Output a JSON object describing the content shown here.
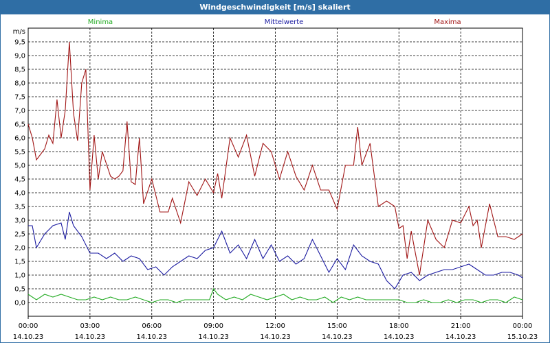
{
  "window": {
    "title": "Windgeschwindigkeit [m/s] skaliert"
  },
  "chart_data": {
    "type": "line",
    "title": "Windgeschwindigkeit [m/s] skaliert",
    "ylabel": "m/s",
    "ylim": [
      -0.5,
      10
    ],
    "xlim": [
      0,
      24
    ],
    "grid": true,
    "legend_position": "top",
    "y_ticks": [
      "0,0",
      "0,5",
      "1,0",
      "1,5",
      "2,0",
      "2,5",
      "3,0",
      "3,5",
      "4,0",
      "4,5",
      "5,0",
      "5,5",
      "6,0",
      "6,5",
      "7,0",
      "7,5",
      "8,0",
      "8,5",
      "9,0",
      "9,5"
    ],
    "x_ticks": [
      {
        "time": "00:00",
        "date": "14.10.23"
      },
      {
        "time": "03:00",
        "date": "14.10.23"
      },
      {
        "time": "06:00",
        "date": "14.10.23"
      },
      {
        "time": "09:00",
        "date": "14.10.23"
      },
      {
        "time": "12:00",
        "date": "14.10.23"
      },
      {
        "time": "15:00",
        "date": "14.10.23"
      },
      {
        "time": "18:00",
        "date": "14.10.23"
      },
      {
        "time": "21:00",
        "date": "14.10.23"
      },
      {
        "time": "00:00",
        "date": "15.10.23"
      }
    ],
    "series": [
      {
        "name": "Minima",
        "color": "#22aa22",
        "x": [
          0,
          0.4,
          0.8,
          1.2,
          1.6,
          2.0,
          2.4,
          2.8,
          3.2,
          3.6,
          4.0,
          4.4,
          4.8,
          5.2,
          5.6,
          6.0,
          6.4,
          6.8,
          7.2,
          7.6,
          8.0,
          8.4,
          8.8,
          9.0,
          9.2,
          9.6,
          10.0,
          10.4,
          10.8,
          11.2,
          11.6,
          12.0,
          12.4,
          12.8,
          13.2,
          13.6,
          14.0,
          14.4,
          14.8,
          15.2,
          15.6,
          16.0,
          16.4,
          16.8,
          17.2,
          17.6,
          18.0,
          18.4,
          18.8,
          19.2,
          19.6,
          20.0,
          20.4,
          20.8,
          21.2,
          21.6,
          22.0,
          22.4,
          22.8,
          23.2,
          23.6,
          24.0
        ],
        "values": [
          0.3,
          0.1,
          0.3,
          0.2,
          0.3,
          0.2,
          0.1,
          0.1,
          0.2,
          0.1,
          0.2,
          0.1,
          0.1,
          0.2,
          0.1,
          0.0,
          0.1,
          0.1,
          0.0,
          0.1,
          0.1,
          0.1,
          0.1,
          0.5,
          0.3,
          0.1,
          0.2,
          0.1,
          0.3,
          0.2,
          0.1,
          0.2,
          0.3,
          0.1,
          0.2,
          0.1,
          0.1,
          0.2,
          0.0,
          0.2,
          0.1,
          0.2,
          0.1,
          0.1,
          0.1,
          0.1,
          0.1,
          0.0,
          0.0,
          0.1,
          0.0,
          0.0,
          0.1,
          0.0,
          0.1,
          0.1,
          0.0,
          0.1,
          0.1,
          0.0,
          0.2,
          0.1
        ]
      },
      {
        "name": "Mittelwerte",
        "color": "#1a1aa0",
        "x": [
          0,
          0.2,
          0.4,
          0.8,
          1.2,
          1.6,
          1.8,
          2.0,
          2.2,
          2.6,
          3.0,
          3.4,
          3.8,
          4.2,
          4.6,
          5.0,
          5.4,
          5.8,
          6.2,
          6.6,
          7.0,
          7.4,
          7.8,
          8.2,
          8.6,
          9.0,
          9.4,
          9.8,
          10.2,
          10.6,
          11.0,
          11.4,
          11.8,
          12.2,
          12.6,
          13.0,
          13.4,
          13.8,
          14.2,
          14.6,
          15.0,
          15.4,
          15.8,
          16.2,
          16.6,
          17.0,
          17.4,
          17.8,
          18.2,
          18.6,
          19.0,
          19.4,
          19.8,
          20.2,
          20.6,
          21.0,
          21.4,
          21.8,
          22.2,
          22.6,
          23.0,
          23.4,
          23.8,
          24.0
        ],
        "values": [
          2.8,
          2.8,
          2.0,
          2.5,
          2.8,
          2.9,
          2.3,
          3.3,
          2.8,
          2.4,
          1.8,
          1.8,
          1.6,
          1.8,
          1.5,
          1.7,
          1.6,
          1.2,
          1.3,
          1.0,
          1.3,
          1.5,
          1.7,
          1.6,
          1.9,
          2.0,
          2.6,
          1.8,
          2.1,
          1.6,
          2.3,
          1.6,
          2.1,
          1.5,
          1.7,
          1.4,
          1.6,
          2.3,
          1.7,
          1.1,
          1.6,
          1.2,
          2.1,
          1.7,
          1.5,
          1.4,
          0.8,
          0.5,
          1.0,
          1.1,
          0.8,
          1.0,
          1.1,
          1.2,
          1.2,
          1.3,
          1.4,
          1.2,
          1.0,
          1.0,
          1.1,
          1.1,
          1.0,
          0.9
        ]
      },
      {
        "name": "Maxima",
        "color": "#a01414",
        "x": [
          0,
          0.2,
          0.4,
          0.8,
          1.0,
          1.2,
          1.4,
          1.6,
          1.8,
          2.0,
          2.2,
          2.4,
          2.6,
          2.8,
          3.0,
          3.2,
          3.4,
          3.6,
          4.0,
          4.2,
          4.4,
          4.6,
          4.8,
          5.0,
          5.2,
          5.4,
          5.6,
          6.0,
          6.4,
          6.8,
          7.0,
          7.4,
          7.8,
          8.2,
          8.6,
          9.0,
          9.2,
          9.4,
          9.8,
          10.2,
          10.6,
          11.0,
          11.4,
          11.8,
          12.2,
          12.6,
          13.0,
          13.4,
          13.8,
          14.2,
          14.6,
          15.0,
          15.4,
          15.8,
          16.0,
          16.2,
          16.6,
          17.0,
          17.4,
          17.8,
          18.0,
          18.2,
          18.4,
          18.6,
          19.0,
          19.4,
          19.8,
          20.2,
          20.6,
          21.0,
          21.4,
          21.6,
          21.8,
          22.0,
          22.4,
          22.8,
          23.2,
          23.6,
          24.0
        ],
        "values": [
          6.5,
          6.0,
          5.2,
          5.6,
          6.1,
          5.8,
          7.4,
          6.0,
          7.0,
          9.5,
          6.9,
          5.9,
          8.0,
          8.5,
          4.1,
          6.1,
          4.5,
          5.5,
          4.6,
          4.5,
          4.6,
          4.8,
          6.6,
          4.4,
          4.3,
          6.0,
          3.6,
          4.5,
          3.3,
          3.3,
          3.8,
          2.9,
          4.4,
          3.9,
          4.5,
          4.0,
          4.7,
          3.8,
          6.0,
          5.3,
          6.1,
          4.6,
          5.8,
          5.5,
          4.5,
          5.5,
          4.6,
          4.1,
          5.0,
          4.1,
          4.1,
          3.4,
          5.0,
          5.0,
          6.4,
          5.0,
          5.8,
          3.5,
          3.7,
          3.5,
          2.7,
          2.8,
          1.6,
          2.6,
          1.0,
          3.0,
          2.3,
          2.0,
          3.0,
          2.9,
          3.5,
          2.8,
          3.0,
          2.0,
          3.6,
          2.4,
          2.4,
          2.3,
          2.5
        ]
      }
    ]
  }
}
